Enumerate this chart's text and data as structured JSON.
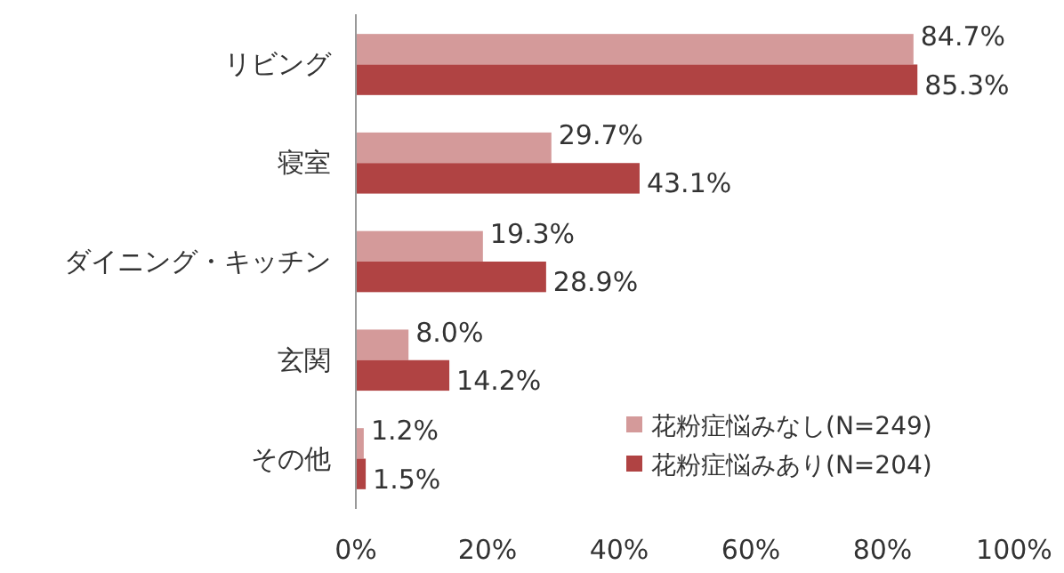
{
  "chart_data": {
    "type": "bar",
    "orientation": "horizontal",
    "categories": [
      "リビング",
      "寝室",
      "ダイニング・キッチン",
      "玄関",
      "その他"
    ],
    "series": [
      {
        "name": "花粉症悩みなし(N=249)",
        "color": "#d49a9a",
        "values": [
          84.7,
          29.7,
          19.3,
          8.0,
          1.2
        ],
        "value_labels": [
          "84.7%",
          "29.7%",
          "19.3%",
          "8.0%",
          "1.2%"
        ]
      },
      {
        "name": "花粉症悩みあり(N=204)",
        "color": "#b04343",
        "values": [
          85.3,
          43.1,
          28.9,
          14.2,
          1.5
        ],
        "value_labels": [
          "85.3%",
          "43.1%",
          "28.9%",
          "14.2%",
          "1.5%"
        ]
      }
    ],
    "xlim": [
      0,
      100
    ],
    "xticks": [
      {
        "value": 0,
        "label": "0%"
      },
      {
        "value": 20,
        "label": "20%"
      },
      {
        "value": 40,
        "label": "40%"
      },
      {
        "value": 60,
        "label": "60%"
      },
      {
        "value": 80,
        "label": "80%"
      },
      {
        "value": 100,
        "label": "100%"
      }
    ],
    "legend": "bottom right",
    "grid": false
  }
}
